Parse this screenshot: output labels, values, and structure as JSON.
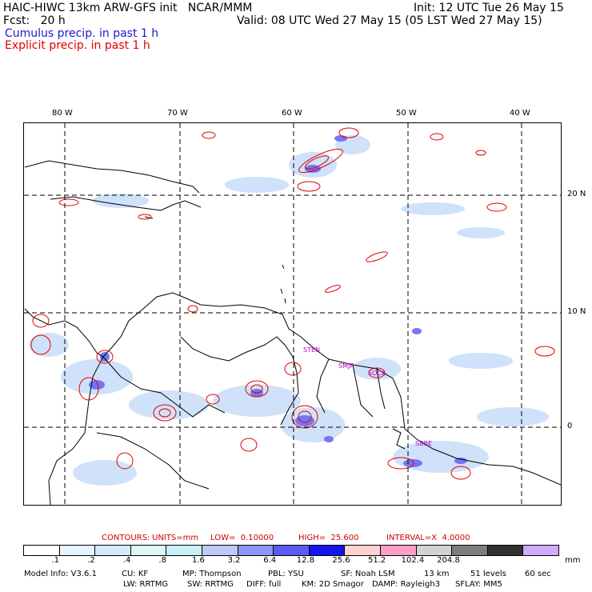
{
  "header": {
    "title": "HAIC-HIWC 13km ARW-GFS init   NCAR/MMM",
    "fcst": "Fcst:   20 h",
    "init": "Init: 12 UTC Tue 26 May 15",
    "valid": "Valid: 08 UTC Wed 27 May 15 (05 LST Wed 27 May 15)",
    "cumulus_label": "Cumulus precip. in past 1 h",
    "explicit_label": "Explicit precip. in past 1 h",
    "cumulus_color": "#1a1acc",
    "explicit_color": "#e00000"
  },
  "map": {
    "lon_labels": [
      "80 W",
      "70 W",
      "60 W",
      "50 W",
      "40 W"
    ],
    "lat_labels": [
      "20 N",
      "10 N",
      "0"
    ],
    "sites": [
      "STEN",
      "SMJP",
      "SOCA",
      "SBBE"
    ]
  },
  "contours": {
    "label": "CONTOURS:",
    "units": "UNITS=mm",
    "low": "LOW=  0.10000",
    "high": "HIGH=  25.600",
    "interval": "INTERVAL=X  4.0000"
  },
  "colorbar": {
    "colors": [
      "#ffffff",
      "#e8f4ff",
      "#d2eafa",
      "#def8f8",
      "#c8f0f6",
      "#c0c8fa",
      "#8c96f8",
      "#5a5af5",
      "#1414f0",
      "#ffd2d2",
      "#ff9ec8",
      "#d2d2d2",
      "#7d7d7d",
      "#323232",
      "#d2aaff"
    ],
    "labels": [
      ".1",
      ".2",
      ".4",
      ".8",
      "1.6",
      "3.2",
      "6.4",
      "12.8",
      "25.6",
      "51.2",
      "102.4",
      "204.8"
    ],
    "units": "mm"
  },
  "model_info": {
    "line1": [
      "Model Info: V3.6.1",
      "CU: KF",
      "MP: Thompson",
      "PBL: YSU",
      "SF: Noah LSM",
      "13 km",
      "51 levels",
      "60 sec"
    ],
    "line2": [
      "LW: RRTMG",
      "SW: RRTMG",
      "DIFF: full",
      "KM: 2D Smagor",
      "DAMP: Rayleigh3",
      "SFLAY: MM5"
    ]
  }
}
